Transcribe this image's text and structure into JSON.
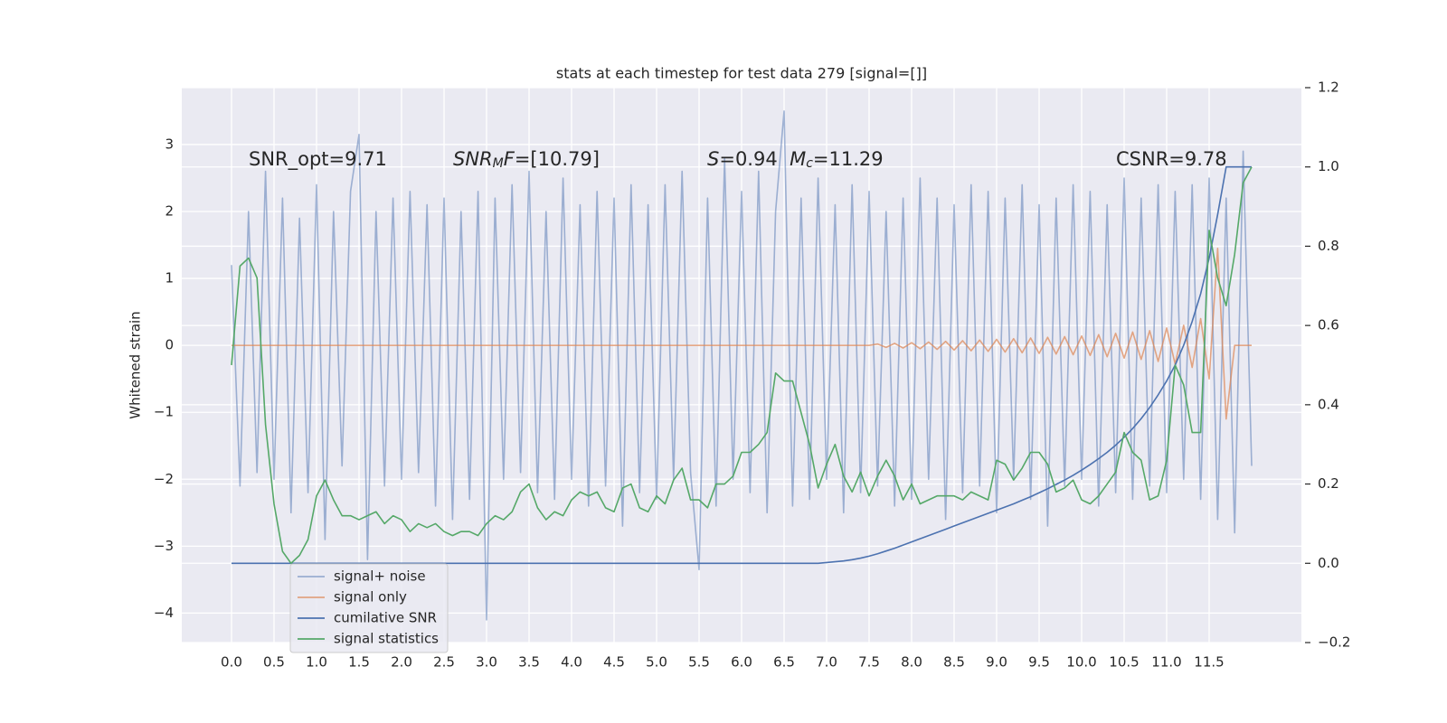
{
  "chart_data": {
    "type": "line",
    "title": "stats at each timestep for test data 279 [signal=[]]",
    "ylabel": "Whitened strain",
    "annotations": [
      [
        {
          "text": "SNR_opt=9.71"
        }
      ],
      [
        {
          "text": "SNR",
          "style": "italic"
        },
        {
          "text": "M",
          "style": "italic-sub"
        },
        {
          "text": "F",
          "style": "italic"
        },
        {
          "text": "=[10.79]"
        }
      ],
      [
        {
          "text": "S",
          "style": "italic"
        },
        {
          "text": "=0.94  "
        },
        {
          "text": "M",
          "style": "italic"
        },
        {
          "text": "c",
          "style": "italic-sub"
        },
        {
          "text": "=11.29"
        }
      ],
      [
        {
          "text": "CSNR=9.78"
        }
      ]
    ],
    "background": "#eaeaf2",
    "grid": true,
    "legend": "lower left",
    "xlim": [
      -0.585,
      12.585
    ],
    "ylim": [
      -4.44,
      3.85
    ],
    "y2lim": [
      -0.2,
      1.2
    ],
    "xticks": [
      {
        "value": 0,
        "label": "0.0"
      },
      0.5,
      {
        "value": 1,
        "label": "1.0"
      },
      1.5,
      {
        "value": 2,
        "label": "2.0"
      },
      2.5,
      {
        "value": 3,
        "label": "3.0"
      },
      3.5,
      {
        "value": 4,
        "label": "4.0"
      },
      4.5,
      {
        "value": 5,
        "label": "5.0"
      },
      5.5,
      {
        "value": 6,
        "label": "6.0"
      },
      6.5,
      {
        "value": 7,
        "label": "7.0"
      },
      7.5,
      {
        "value": 8,
        "label": "8.0"
      },
      8.5,
      {
        "value": 9,
        "label": "9.0"
      },
      9.5,
      {
        "value": 10,
        "label": "10.0"
      },
      10.5,
      {
        "value": 11,
        "label": "11.0"
      },
      11.5
    ],
    "yticks": [
      {
        "value": -4,
        "label": "−4"
      },
      {
        "value": -3,
        "label": "−3"
      },
      {
        "value": -2,
        "label": "−2"
      },
      {
        "value": -1,
        "label": "−1"
      },
      0,
      1,
      2,
      3
    ],
    "y2ticks": [
      {
        "value": -0.2,
        "label": "−0.2"
      },
      {
        "value": 0,
        "label": "0.0"
      },
      0.2,
      0.4,
      0.6,
      0.8,
      {
        "value": 1,
        "label": "1.0"
      },
      1.2
    ],
    "x": [
      0,
      0.1,
      0.2,
      0.3,
      0.4,
      0.5,
      0.6,
      0.7,
      0.8,
      0.9,
      1,
      1.1,
      1.2,
      1.3,
      1.4,
      1.5,
      1.6,
      1.7,
      1.8,
      1.9,
      2,
      2.1,
      2.2,
      2.3,
      2.4,
      2.5,
      2.6,
      2.7,
      2.8,
      2.9,
      3,
      3.1,
      3.2,
      3.3,
      3.4,
      3.5,
      3.6,
      3.7,
      3.8,
      3.9,
      4,
      4.1,
      4.2,
      4.3,
      4.4,
      4.5,
      4.6,
      4.7,
      4.8,
      4.9,
      5,
      5.1,
      5.2,
      5.3,
      5.4,
      5.5,
      5.6,
      5.7,
      5.8,
      5.9,
      6,
      6.1,
      6.2,
      6.3,
      6.4,
      6.5,
      6.6,
      6.7,
      6.8,
      6.9,
      7,
      7.1,
      7.2,
      7.3,
      7.4,
      7.5,
      7.6,
      7.7,
      7.8,
      7.9,
      8,
      8.1,
      8.2,
      8.3,
      8.4,
      8.5,
      8.6,
      8.7,
      8.8,
      8.9,
      9,
      9.1,
      9.2,
      9.3,
      9.4,
      9.5,
      9.6,
      9.7,
      9.8,
      9.9,
      10,
      10.1,
      10.2,
      10.3,
      10.4,
      10.5,
      10.6,
      10.7,
      10.8,
      10.9,
      11,
      11.1,
      11.2,
      11.3,
      11.4,
      11.5,
      11.6,
      11.7,
      11.8,
      11.9,
      12
    ],
    "series": [
      {
        "name": "signal+ noise",
        "color": "#4c72b0",
        "opacity": 0.5,
        "values": [
          1.2,
          -2.1,
          2.0,
          -1.9,
          2.6,
          -2.0,
          2.2,
          -2.5,
          1.9,
          -2.2,
          2.4,
          -2.9,
          2.0,
          -1.8,
          2.3,
          3.15,
          -3.2,
          2.0,
          -2.1,
          2.2,
          -2.0,
          2.3,
          -1.9,
          2.1,
          -2.4,
          2.2,
          -2.6,
          2.0,
          -2.3,
          2.3,
          -4.1,
          2.2,
          -2.0,
          2.4,
          -1.9,
          2.6,
          -2.2,
          2.0,
          -2.3,
          2.5,
          -2.0,
          2.1,
          -2.4,
          2.3,
          -2.1,
          2.2,
          -2.7,
          2.4,
          -2.2,
          2.1,
          -2.3,
          2.4,
          -2.0,
          2.6,
          -1.9,
          -3.35,
          2.2,
          -2.4,
          2.8,
          -2.0,
          2.3,
          -2.2,
          2.6,
          -2.5,
          2.0,
          3.5,
          -2.4,
          2.2,
          -2.3,
          2.5,
          -2.0,
          2.1,
          -2.5,
          2.4,
          -2.2,
          2.3,
          -2.1,
          2.0,
          -2.4,
          2.2,
          -2.3,
          2.5,
          -2.0,
          2.2,
          -2.6,
          2.1,
          -2.2,
          2.4,
          -2.1,
          2.3,
          -2.5,
          2.2,
          -2.0,
          2.4,
          -2.3,
          2.1,
          -2.7,
          2.2,
          -2.1,
          2.4,
          -2.0,
          2.3,
          -2.4,
          2.1,
          -2.2,
          2.5,
          -2.3,
          2.2,
          -2.1,
          2.4,
          -2.2,
          2.3,
          -2.0,
          2.4,
          -2.3,
          2.5,
          -2.6,
          2.2,
          -2.8,
          2.9,
          -1.8
        ]
      },
      {
        "name": "signal only",
        "color": "#dd8452",
        "opacity": 0.7,
        "values": [
          0,
          0,
          0,
          0,
          0,
          0,
          0,
          0,
          0,
          0,
          0,
          0,
          0,
          0,
          0,
          0,
          0,
          0,
          0,
          0,
          0,
          0,
          0,
          0,
          0,
          0,
          0,
          0,
          0,
          0,
          0,
          0,
          0,
          0,
          0,
          0,
          0,
          0,
          0,
          0,
          0,
          0,
          0,
          0,
          0,
          0,
          0,
          0,
          0,
          0,
          0,
          0,
          0,
          0,
          0,
          0,
          0,
          0,
          0,
          0,
          0,
          0,
          0,
          0,
          0,
          0,
          0,
          0,
          0,
          0,
          0,
          0,
          0,
          0,
          0,
          0,
          0.02,
          -0.03,
          0.03,
          -0.04,
          0.04,
          -0.05,
          0.05,
          -0.06,
          0.06,
          -0.07,
          0.07,
          -0.08,
          0.08,
          -0.09,
          0.09,
          -0.1,
          0.1,
          -0.11,
          0.11,
          -0.12,
          0.12,
          -0.13,
          0.13,
          -0.14,
          0.14,
          -0.15,
          0.16,
          -0.17,
          0.18,
          -0.19,
          0.2,
          -0.21,
          0.22,
          -0.24,
          0.26,
          -0.28,
          0.3,
          -0.33,
          0.4,
          -0.5,
          1.45,
          -1.1,
          0,
          0,
          0
        ]
      },
      {
        "name": "cumilative SNR",
        "color": "#4c72b0",
        "opacity": 1,
        "axis": "y2",
        "values": [
          0,
          0,
          0,
          0,
          0,
          0,
          0,
          0,
          0,
          0,
          0,
          0,
          0,
          0,
          0,
          0,
          0,
          0,
          0,
          0,
          0,
          0,
          0,
          0,
          0,
          0,
          0,
          0,
          0,
          0,
          0,
          0,
          0,
          0,
          0,
          0,
          0,
          0,
          0,
          0,
          0,
          0,
          0,
          0,
          0,
          0,
          0,
          0,
          0,
          0,
          0,
          0,
          0,
          0,
          0,
          0,
          0,
          0,
          0,
          0,
          0,
          0,
          0,
          0,
          0,
          0,
          0,
          0,
          0,
          0,
          0.002,
          0.004,
          0.006,
          0.009,
          0.013,
          0.018,
          0.024,
          0.031,
          0.038,
          0.046,
          0.054,
          0.062,
          0.07,
          0.078,
          0.086,
          0.094,
          0.102,
          0.11,
          0.118,
          0.126,
          0.134,
          0.142,
          0.15,
          0.159,
          0.168,
          0.178,
          0.188,
          0.199,
          0.21,
          0.222,
          0.235,
          0.249,
          0.264,
          0.28,
          0.298,
          0.318,
          0.34,
          0.365,
          0.393,
          0.425,
          0.46,
          0.5,
          0.55,
          0.61,
          0.68,
          0.77,
          0.88,
          1.0,
          1.0,
          1.0,
          1.0
        ]
      },
      {
        "name": "signal statistics",
        "color": "#55a868",
        "opacity": 1,
        "axis": "y2",
        "values": [
          0.5,
          0.75,
          0.77,
          0.72,
          0.35,
          0.15,
          0.03,
          0.0,
          0.02,
          0.06,
          0.17,
          0.21,
          0.16,
          0.12,
          0.12,
          0.11,
          0.12,
          0.13,
          0.1,
          0.12,
          0.11,
          0.08,
          0.1,
          0.09,
          0.1,
          0.08,
          0.07,
          0.08,
          0.08,
          0.07,
          0.1,
          0.12,
          0.11,
          0.13,
          0.18,
          0.2,
          0.14,
          0.11,
          0.13,
          0.12,
          0.16,
          0.18,
          0.17,
          0.18,
          0.14,
          0.13,
          0.19,
          0.2,
          0.14,
          0.13,
          0.17,
          0.15,
          0.21,
          0.24,
          0.16,
          0.16,
          0.14,
          0.2,
          0.2,
          0.22,
          0.28,
          0.28,
          0.3,
          0.33,
          0.48,
          0.46,
          0.46,
          0.38,
          0.3,
          0.19,
          0.25,
          0.3,
          0.22,
          0.18,
          0.23,
          0.17,
          0.22,
          0.26,
          0.22,
          0.16,
          0.2,
          0.15,
          0.16,
          0.17,
          0.17,
          0.17,
          0.16,
          0.18,
          0.17,
          0.16,
          0.26,
          0.25,
          0.21,
          0.24,
          0.28,
          0.28,
          0.25,
          0.18,
          0.19,
          0.21,
          0.16,
          0.15,
          0.17,
          0.2,
          0.23,
          0.33,
          0.28,
          0.26,
          0.16,
          0.17,
          0.26,
          0.5,
          0.45,
          0.33,
          0.33,
          0.84,
          0.72,
          0.65,
          0.78,
          0.96,
          1.0
        ]
      }
    ]
  }
}
